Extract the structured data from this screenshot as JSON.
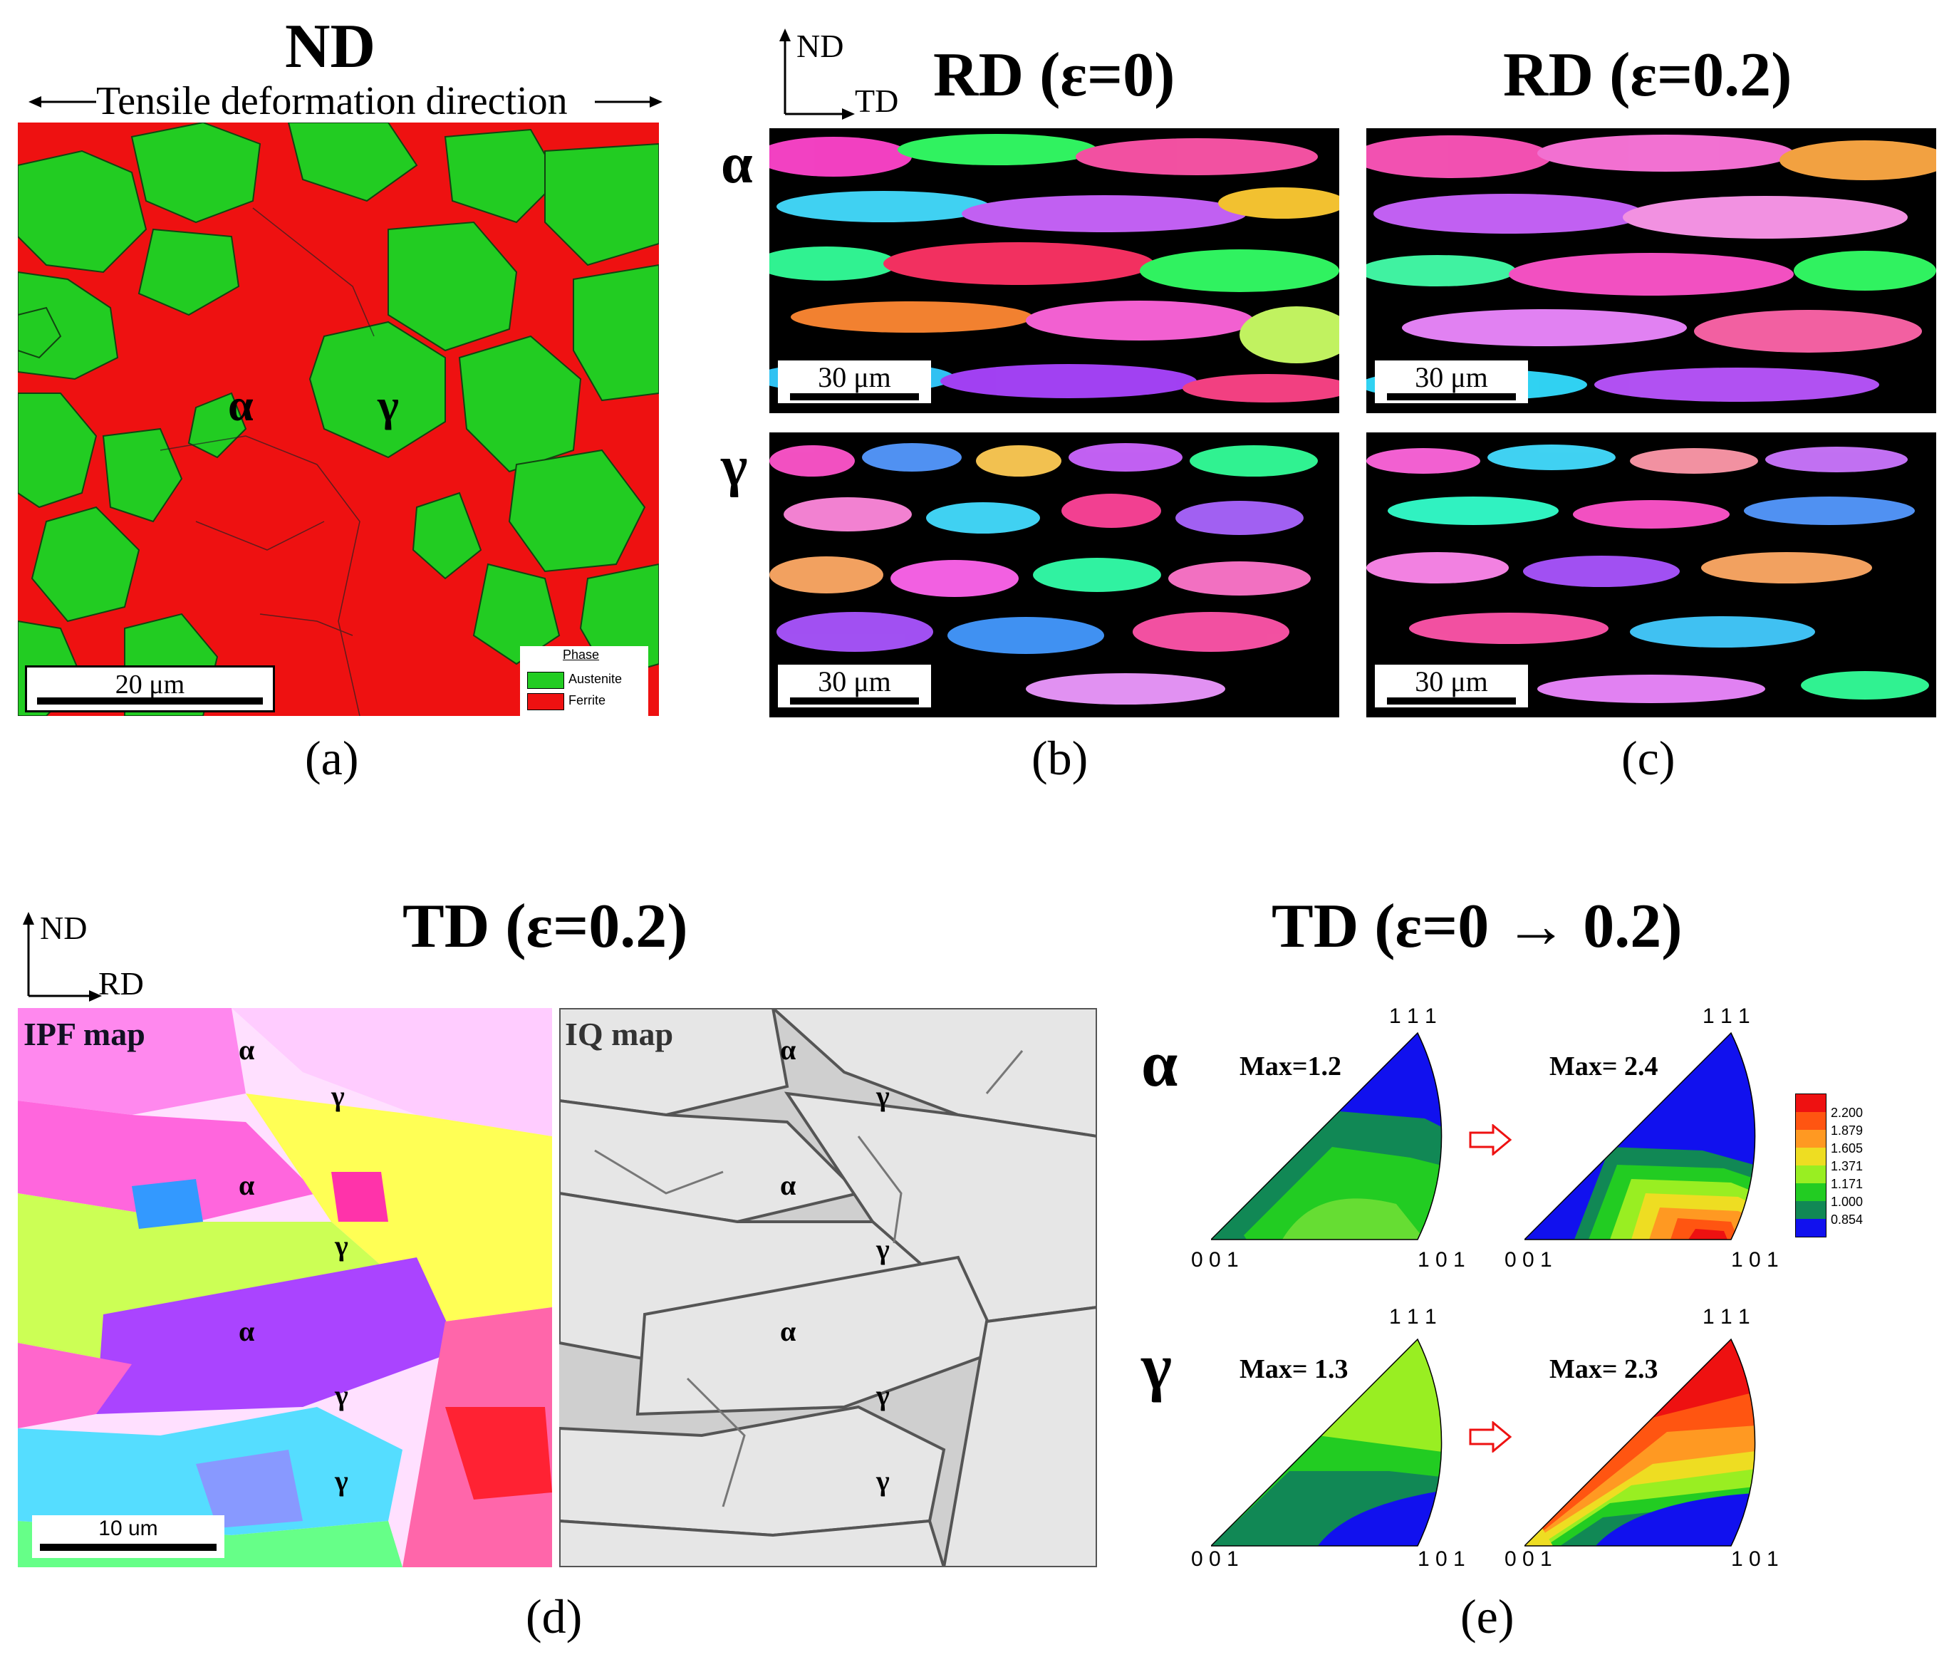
{
  "panel_a": {
    "title": "ND",
    "subtitle": "Tensile deformation direction",
    "label_alpha": "α",
    "label_gamma": "γ",
    "scale": "20 μm",
    "legend_title": "Phase",
    "legend_items": [
      {
        "name": "Austenite",
        "color": "#22cc22"
      },
      {
        "name": "Ferrite",
        "color": "#ee1111"
      }
    ],
    "caption": "(a)"
  },
  "panel_bc": {
    "axis_nd": "ND",
    "axis_td": "TD",
    "title_b": "RD (ε=0)",
    "title_c": "RD (ε=0.2)",
    "row_alpha": "α",
    "row_gamma": "γ",
    "scale": "30 μm",
    "caption_b": "(b)",
    "caption_c": "(c)"
  },
  "panel_d": {
    "axis_nd": "ND",
    "axis_rd": "RD",
    "title": "TD (ε=0.2)",
    "ipf_label": "IPF map",
    "iq_label": "IQ map",
    "marks": [
      "α",
      "γ",
      "α",
      "γ",
      "α",
      "γ",
      "γ"
    ],
    "scale": "10 um",
    "caption": "(d)"
  },
  "panel_e": {
    "title": "TD (ε=0 → 0.2)",
    "row_alpha": "α",
    "row_gamma": "γ",
    "corner_111": "1 1 1",
    "corner_001": "0 0 1",
    "corner_101": "1 0 1",
    "max_alpha_before": "Max=1.2",
    "max_alpha_after": "Max= 2.4",
    "max_gamma_before": "Max= 1.3",
    "max_gamma_after": "Max= 2.3",
    "legend": [
      {
        "value": "2.200",
        "color": "#ee1111"
      },
      {
        "value": "1.879",
        "color": "#ff5511"
      },
      {
        "value": "1.605",
        "color": "#ff9922"
      },
      {
        "value": "1.371",
        "color": "#eedd22"
      },
      {
        "value": "1.171",
        "color": "#99ee22"
      },
      {
        "value": "1.000",
        "color": "#22cc22"
      },
      {
        "value": "0.854",
        "color": "#118855"
      }
    ],
    "legend_low_color": "#1111ee",
    "caption": "(e)"
  }
}
